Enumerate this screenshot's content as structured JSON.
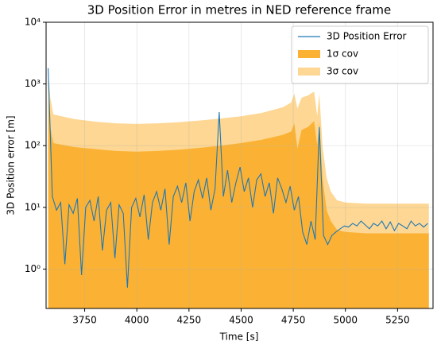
{
  "chart_data": {
    "type": "line",
    "title": "3D Position Error in metres in NED reference frame",
    "xlabel": "Time [s]",
    "ylabel": "3D Position error [m]",
    "xlim": [
      3565,
      5420
    ],
    "ylim": [
      0.23,
      10000
    ],
    "log_y": true,
    "grid": true,
    "legend": "upper right",
    "xticks": [
      3750,
      4000,
      4250,
      4500,
      4750,
      5000,
      5250
    ],
    "yticks": [
      {
        "value": 1,
        "label": "10⁰"
      },
      {
        "value": 10,
        "label": "10¹"
      },
      {
        "value": 100,
        "label": "10²"
      },
      {
        "value": 1000,
        "label": "10³"
      },
      {
        "value": 10000,
        "label": "10⁴"
      }
    ],
    "series": [
      {
        "name": "3D Position Error",
        "kind": "line",
        "color": "#1f77b4",
        "x": [
          3575,
          3595,
          3615,
          3635,
          3655,
          3675,
          3695,
          3715,
          3735,
          3755,
          3775,
          3795,
          3815,
          3835,
          3855,
          3875,
          3895,
          3915,
          3935,
          3955,
          3975,
          3995,
          4015,
          4035,
          4055,
          4075,
          4095,
          4115,
          4135,
          4155,
          4175,
          4195,
          4215,
          4235,
          4255,
          4275,
          4295,
          4315,
          4335,
          4355,
          4375,
          4395,
          4415,
          4435,
          4455,
          4475,
          4495,
          4515,
          4535,
          4555,
          4575,
          4595,
          4615,
          4635,
          4655,
          4675,
          4695,
          4715,
          4735,
          4755,
          4775,
          4795,
          4815,
          4835,
          4855,
          4875,
          4895,
          4915,
          4935,
          4955,
          4975,
          4995,
          5015,
          5035,
          5055,
          5075,
          5095,
          5115,
          5135,
          5155,
          5175,
          5195,
          5215,
          5235,
          5255,
          5275,
          5295,
          5315,
          5335,
          5355,
          5375,
          5395
        ],
        "values": [
          1800,
          15,
          9,
          12,
          1.2,
          11,
          8,
          14,
          0.8,
          10,
          13,
          6,
          15,
          2,
          9,
          12,
          1.5,
          11,
          8,
          0.5,
          10,
          14,
          7,
          16,
          3,
          12,
          18,
          9,
          20,
          2.5,
          15,
          22,
          12,
          25,
          6,
          18,
          28,
          14,
          30,
          9,
          20,
          350,
          15,
          40,
          12,
          25,
          45,
          18,
          30,
          10,
          28,
          35,
          15,
          25,
          8,
          30,
          20,
          12,
          22,
          9,
          15,
          4,
          2.5,
          6,
          3,
          200,
          3.5,
          2.5,
          3.5,
          4,
          4.5,
          5,
          4.8,
          5.5,
          5,
          6,
          5.2,
          4.5,
          5.5,
          5,
          6,
          4.5,
          5.8,
          4.2,
          5.5,
          5,
          4.5,
          6,
          5,
          5.5,
          4.8,
          5.5
        ]
      },
      {
        "name": "1σ cov",
        "kind": "area",
        "color": "#fbb234",
        "x": [
          3575,
          3585,
          3600,
          3700,
          3800,
          3900,
          4000,
          4100,
          4200,
          4300,
          4400,
          4500,
          4600,
          4700,
          4740,
          4755,
          4770,
          4790,
          4820,
          4850,
          4865,
          4875,
          4890,
          4910,
          4930,
          4960,
          5000,
          5100,
          5200,
          5300,
          5400
        ],
        "values": [
          600,
          200,
          110,
          95,
          88,
          82,
          80,
          82,
          86,
          92,
          100,
          110,
          125,
          150,
          170,
          230,
          90,
          180,
          200,
          250,
          100,
          240,
          30,
          9,
          6,
          4.3,
          4,
          3.8,
          3.8,
          3.8,
          3.8
        ]
      },
      {
        "name": "3σ cov",
        "kind": "area",
        "color": "#fdd793",
        "x": [
          3575,
          3585,
          3600,
          3700,
          3800,
          3900,
          4000,
          4100,
          4200,
          4300,
          4400,
          4500,
          4600,
          4700,
          4740,
          4755,
          4770,
          4790,
          4820,
          4850,
          4865,
          4875,
          4890,
          4910,
          4930,
          4960,
          5000,
          5100,
          5200,
          5300,
          5400
        ],
        "values": [
          1800,
          600,
          320,
          270,
          245,
          230,
          225,
          230,
          240,
          255,
          275,
          300,
          340,
          420,
          500,
          700,
          400,
          600,
          650,
          750,
          300,
          700,
          100,
          30,
          18,
          13,
          12,
          11.5,
          11.5,
          11.5,
          11.5
        ]
      }
    ]
  }
}
